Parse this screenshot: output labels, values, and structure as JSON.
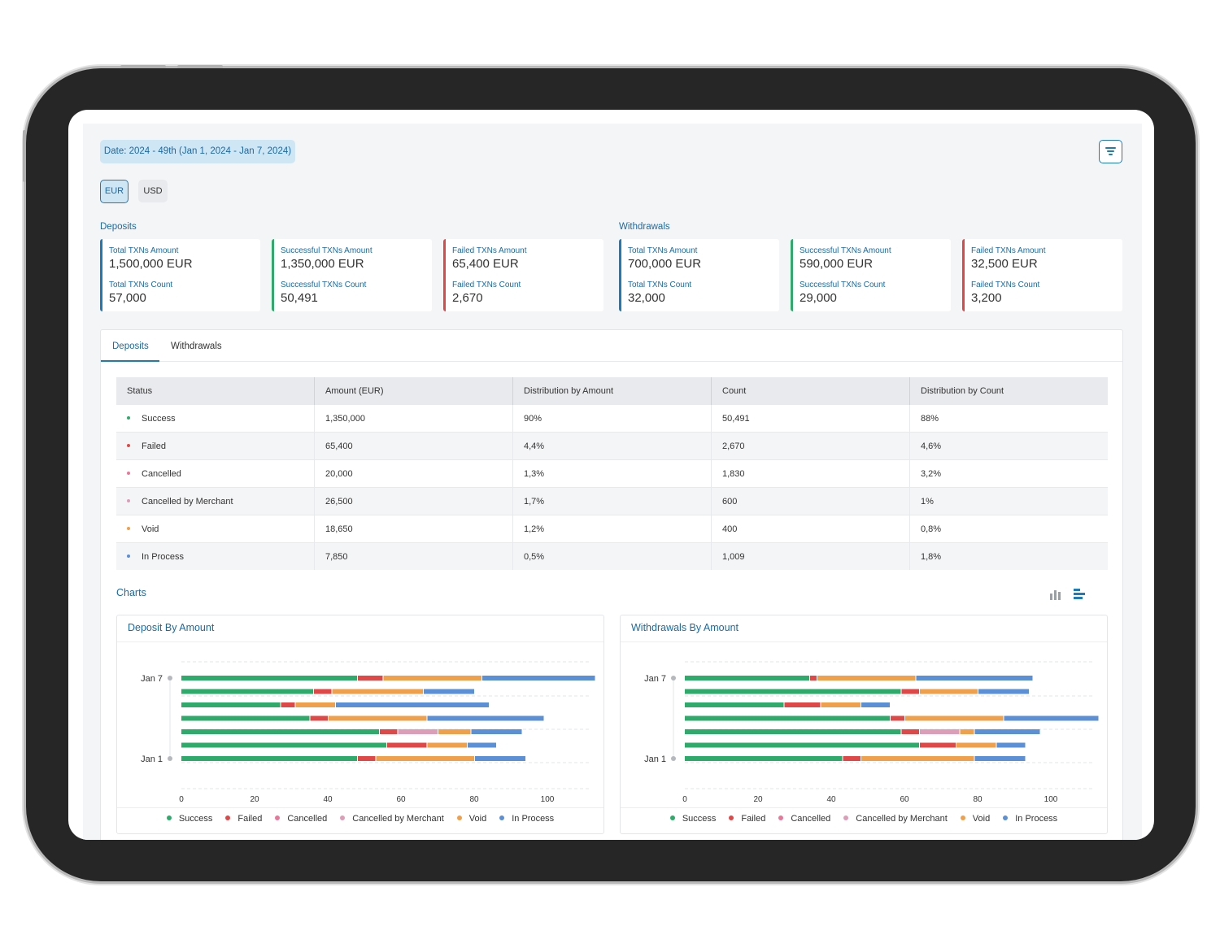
{
  "header": {
    "date_chip": "Date: 2024 - 49th (Jan 1, 2024 - Jan 7, 2024)",
    "filter_icon": "filter-icon"
  },
  "currency": {
    "options": [
      "EUR",
      "USD"
    ],
    "selected": "EUR"
  },
  "kpis": {
    "deposits": {
      "title": "Deposits",
      "cards": [
        {
          "label1": "Total TXNs Amount",
          "value1": "1,500,000 EUR",
          "label2": "Total TXNs Count",
          "value2": "57,000",
          "color": "#1f7ab9"
        },
        {
          "label1": "Successful TXNs Amount",
          "value1": "1,350,000 EUR",
          "label2": "Successful TXNs Count",
          "value2": "50,491",
          "color": "#2eaa6a"
        },
        {
          "label1": "Failed TXNs Amount",
          "value1": "65,400 EUR",
          "label2": "Failed TXNs Count",
          "value2": "2,670",
          "color": "#e04848"
        }
      ]
    },
    "withdrawals": {
      "title": "Withdrawals",
      "cards": [
        {
          "label1": "Total TXNs Amount",
          "value1": "700,000 EUR",
          "label2": "Total TXNs Count",
          "value2": "32,000",
          "color": "#1f7ab9"
        },
        {
          "label1": "Successful TXNs Amount",
          "value1": "590,000 EUR",
          "label2": "Successful TXNs Count",
          "value2": "29,000",
          "color": "#2eaa6a"
        },
        {
          "label1": "Failed TXNs Amount",
          "value1": "32,500 EUR",
          "label2": "Failed TXNs Count",
          "value2": "3,200",
          "color": "#e04848"
        }
      ]
    }
  },
  "tabs": [
    {
      "label": "Deposits",
      "active": true
    },
    {
      "label": "Withdrawals",
      "active": false
    }
  ],
  "table": {
    "headers": [
      "Status",
      "Amount (EUR)",
      "Distribution by Amount",
      "Count",
      "Distribution by Count"
    ],
    "rows": [
      {
        "status": "Success",
        "color": "#2eaa6a",
        "amount": "1,350,000",
        "dist_amount": "90%",
        "count": "50,491",
        "dist_count": "88%"
      },
      {
        "status": "Failed",
        "color": "#e04848",
        "amount": "65,400",
        "dist_amount": "4,4%",
        "count": "2,670",
        "dist_count": "4,6%"
      },
      {
        "status": "Cancelled",
        "color": "#e8789a",
        "amount": "20,000",
        "dist_amount": "1,3%",
        "count": "1,830",
        "dist_count": "3,2%"
      },
      {
        "status": "Cancelled by Merchant",
        "color": "#dd9db7",
        "amount": "26,500",
        "dist_amount": "1,7%",
        "count": "600",
        "dist_count": "1%"
      },
      {
        "status": "Void",
        "color": "#f0a04a",
        "amount": "18,650",
        "dist_amount": "1,2%",
        "count": "400",
        "dist_count": "0,8%"
      },
      {
        "status": "In Process",
        "color": "#5b8fd6",
        "amount": "7,850",
        "dist_amount": "0,5%",
        "count": "1,009",
        "dist_count": "1,8%"
      }
    ]
  },
  "charts_section": {
    "title": "Charts",
    "view_icons": [
      "vertical-bar-chart-icon",
      "horizontal-bar-chart-icon"
    ],
    "active_view": "horizontal-bar-chart-icon"
  },
  "chart_data": [
    {
      "type": "bar",
      "orientation": "horizontal",
      "stacked": true,
      "title": "Deposit By Amount",
      "categories": [
        "Jan 7",
        "",
        "",
        "",
        "",
        "",
        "Jan 1"
      ],
      "xlim": [
        0,
        110
      ],
      "xticks": [
        0,
        20,
        40,
        60,
        80,
        100
      ],
      "grid": "dashed",
      "legend_position": "bottom",
      "series": [
        {
          "name": "Success",
          "color": "#2eaa6a",
          "values": [
            48,
            36,
            27,
            35,
            54,
            56,
            48
          ]
        },
        {
          "name": "Failed",
          "color": "#e04848",
          "values": [
            7,
            5,
            4,
            5,
            5,
            11,
            5
          ]
        },
        {
          "name": "Cancelled",
          "color": "#e8789a",
          "values": [
            0,
            0,
            0,
            0,
            0,
            0,
            0
          ]
        },
        {
          "name": "Cancelled by Merchant",
          "color": "#dd9db7",
          "values": [
            0,
            0,
            0,
            0,
            11,
            0,
            0
          ]
        },
        {
          "name": "Void",
          "color": "#f0a04a",
          "values": [
            27,
            25,
            11,
            27,
            9,
            11,
            27
          ]
        },
        {
          "name": "In Process",
          "color": "#5b8fd6",
          "values": [
            31,
            14,
            42,
            32,
            14,
            8,
            14
          ]
        }
      ]
    },
    {
      "type": "bar",
      "orientation": "horizontal",
      "stacked": true,
      "title": "Withdrawals By Amount",
      "categories": [
        "Jan 7",
        "",
        "",
        "",
        "",
        "",
        "Jan 1"
      ],
      "xlim": [
        0,
        110
      ],
      "xticks": [
        0,
        20,
        40,
        60,
        80,
        100
      ],
      "grid": "dashed",
      "legend_position": "bottom",
      "series": [
        {
          "name": "Success",
          "color": "#2eaa6a",
          "values": [
            34,
            59,
            27,
            56,
            59,
            64,
            43
          ]
        },
        {
          "name": "Failed",
          "color": "#e04848",
          "values": [
            2,
            5,
            10,
            4,
            5,
            10,
            5
          ]
        },
        {
          "name": "Cancelled",
          "color": "#e8789a",
          "values": [
            0,
            0,
            0,
            0,
            0,
            0,
            0
          ]
        },
        {
          "name": "Cancelled by Merchant",
          "color": "#dd9db7",
          "values": [
            0,
            0,
            0,
            0,
            11,
            0,
            0
          ]
        },
        {
          "name": "Void",
          "color": "#f0a04a",
          "values": [
            27,
            16,
            11,
            27,
            4,
            11,
            31
          ]
        },
        {
          "name": "In Process",
          "color": "#5b8fd6",
          "values": [
            32,
            14,
            8,
            26,
            18,
            8,
            14
          ]
        }
      ]
    }
  ]
}
